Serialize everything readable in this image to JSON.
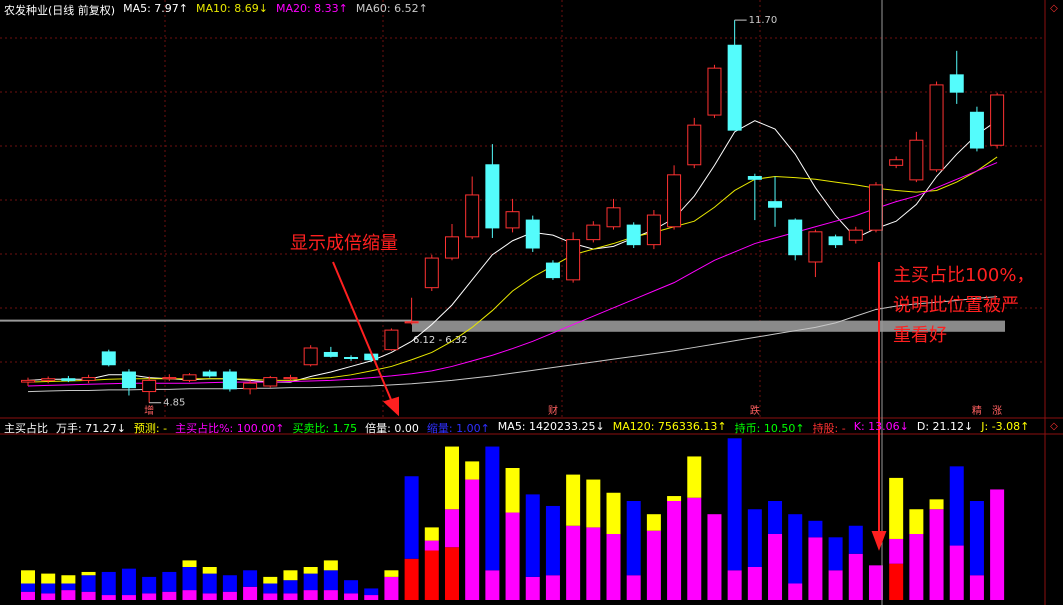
{
  "chart_data": [
    {
      "type": "candlestick",
      "title": "农发种业(日线 前复权)",
      "open": [
        5.22,
        5.25,
        5.28,
        5.25,
        5.76,
        5.4,
        5.05,
        5.28,
        5.25,
        5.4,
        5.4,
        5.1,
        5.15,
        5.28,
        5.53,
        5.75,
        5.66,
        5.72,
        5.8,
        6.28,
        6.91,
        7.44,
        7.82,
        9.11,
        7.98,
        8.12,
        7.35,
        7.05,
        7.77,
        8.0,
        8.03,
        7.68,
        8.0,
        9.11,
        10.0,
        11.25,
        8.9,
        8.45,
        8.12,
        7.37,
        7.82,
        7.76,
        7.94,
        9.1,
        8.84,
        9.02,
        10.72,
        10.05,
        9.46
      ],
      "high": [
        5.3,
        5.32,
        5.33,
        5.35,
        5.8,
        5.45,
        5.32,
        5.36,
        5.38,
        5.44,
        5.45,
        5.25,
        5.33,
        5.35,
        5.88,
        5.85,
        5.7,
        5.76,
        6.18,
        6.73,
        7.5,
        8.05,
        8.9,
        9.48,
        8.5,
        8.2,
        7.4,
        7.9,
        8.1,
        8.5,
        8.08,
        8.3,
        9.1,
        9.95,
        10.9,
        11.7,
        8.95,
        8.9,
        8.15,
        7.95,
        7.86,
        8.0,
        8.8,
        9.26,
        9.7,
        10.6,
        11.15,
        10.15,
        10.4
      ],
      "low": [
        5.15,
        5.2,
        5.22,
        5.2,
        5.5,
        4.98,
        4.85,
        5.24,
        5.22,
        5.3,
        5.05,
        5.0,
        5.12,
        5.25,
        5.5,
        5.66,
        5.6,
        5.58,
        5.78,
        6.25,
        6.85,
        7.4,
        7.78,
        7.8,
        7.9,
        7.55,
        7.05,
        7.0,
        7.72,
        7.95,
        7.62,
        7.6,
        7.95,
        9.05,
        9.95,
        9.73,
        8.12,
        8.0,
        7.4,
        7.1,
        7.62,
        7.7,
        7.9,
        9.05,
        8.8,
        8.98,
        10.2,
        9.35,
        9.4
      ],
      "close": [
        5.25,
        5.28,
        5.25,
        5.3,
        5.53,
        5.12,
        5.25,
        5.3,
        5.35,
        5.33,
        5.1,
        5.2,
        5.3,
        5.3,
        5.83,
        5.68,
        5.65,
        5.62,
        6.15,
        6.3,
        7.44,
        7.82,
        8.57,
        7.98,
        8.27,
        7.62,
        7.09,
        7.77,
        8.03,
        8.34,
        7.68,
        8.21,
        8.93,
        9.82,
        10.84,
        9.73,
        8.85,
        8.35,
        7.5,
        7.91,
        7.68,
        7.94,
        8.75,
        9.2,
        9.55,
        10.54,
        10.41,
        9.41,
        10.36
      ],
      "ylim": [
        4.72,
        12.06
      ],
      "up_color": "#ff3232",
      "down_color": "#54fcfc",
      "lines": [
        {
          "name": "MA5: 7.97↑",
          "color": "#ffffff",
          "values": [
            5.25,
            5.27,
            5.27,
            5.27,
            5.35,
            5.35,
            5.3,
            5.28,
            5.26,
            5.28,
            5.28,
            5.25,
            5.22,
            5.22,
            5.32,
            5.4,
            5.5,
            5.6,
            5.75,
            5.95,
            6.25,
            6.6,
            7.05,
            7.5,
            7.75,
            7.9,
            7.85,
            7.7,
            7.6,
            7.65,
            7.8,
            7.95,
            8.15,
            8.55,
            9.1,
            9.7,
            9.9,
            9.75,
            9.3,
            8.7,
            8.2,
            7.8,
            7.97,
            8.1,
            8.4,
            8.9,
            9.3,
            9.65,
            9.9
          ]
        },
        {
          "name": "MA10: 8.69↓",
          "color": "#e8e800",
          "values": [
            5.22,
            5.23,
            5.24,
            5.25,
            5.27,
            5.28,
            5.28,
            5.28,
            5.28,
            5.28,
            5.28,
            5.27,
            5.25,
            5.25,
            5.28,
            5.3,
            5.35,
            5.42,
            5.5,
            5.62,
            5.75,
            5.95,
            6.2,
            6.5,
            6.85,
            7.1,
            7.3,
            7.5,
            7.6,
            7.7,
            7.82,
            7.9,
            8.0,
            8.1,
            8.35,
            8.65,
            8.85,
            8.9,
            8.88,
            8.85,
            8.8,
            8.75,
            8.69,
            8.65,
            8.62,
            8.65,
            8.8,
            9.0,
            9.25
          ]
        },
        {
          "name": "MA20: 8.33↑",
          "color": "#ff00ff",
          "values": [
            5.15,
            5.16,
            5.17,
            5.18,
            5.19,
            5.2,
            5.2,
            5.2,
            5.2,
            5.21,
            5.22,
            5.22,
            5.22,
            5.23,
            5.24,
            5.25,
            5.27,
            5.3,
            5.33,
            5.37,
            5.42,
            5.5,
            5.6,
            5.7,
            5.82,
            5.95,
            6.1,
            6.25,
            6.4,
            6.55,
            6.7,
            6.85,
            7.0,
            7.2,
            7.4,
            7.55,
            7.7,
            7.8,
            7.9,
            8.0,
            8.1,
            8.2,
            8.33,
            8.45,
            8.55,
            8.7,
            8.85,
            9.0,
            9.15
          ]
        },
        {
          "name": "MA60: 6.52↑",
          "color": "#c8c8c8",
          "values": [
            5.05,
            5.06,
            5.07,
            5.07,
            5.08,
            5.08,
            5.09,
            5.09,
            5.1,
            5.1,
            5.1,
            5.11,
            5.11,
            5.12,
            5.12,
            5.13,
            5.14,
            5.15,
            5.17,
            5.19,
            5.22,
            5.25,
            5.29,
            5.33,
            5.38,
            5.43,
            5.48,
            5.53,
            5.58,
            5.63,
            5.68,
            5.73,
            5.78,
            5.84,
            5.9,
            5.96,
            6.02,
            6.08,
            6.14,
            6.2,
            6.28,
            6.4,
            6.52,
            6.58,
            6.62,
            6.65,
            6.68,
            6.72,
            6.75
          ]
        }
      ],
      "band": {
        "low": 6.12,
        "high": 6.32,
        "label": "6.12 - 6.32"
      },
      "price_labels": [
        {
          "value": 11.7,
          "label": "11.70"
        },
        {
          "value": 4.85,
          "label": "4.85"
        }
      ],
      "events": [
        null,
        null,
        null,
        null,
        null,
        null,
        "增",
        null,
        null,
        null,
        null,
        null,
        null,
        null,
        null,
        null,
        null,
        null,
        null,
        null,
        null,
        null,
        null,
        null,
        null,
        null,
        "财",
        null,
        null,
        null,
        null,
        null,
        null,
        null,
        null,
        null,
        "跌",
        null,
        null,
        null,
        null,
        null,
        null,
        null,
        null,
        null,
        null,
        "精",
        "涨"
      ],
      "annotation": "显示成倍缩量"
    },
    {
      "type": "stacked-bar",
      "title": "主买占比",
      "ylim": [
        0,
        100
      ],
      "indicators": [
        {
          "label": "万手: 71.27↓",
          "color": "#ffffff"
        },
        {
          "label": "预测: -",
          "color": "#ffff00"
        },
        {
          "label": "主买占比%: 100.00↑",
          "color": "#ff00ff"
        },
        {
          "label": "买卖比: 1.75",
          "color": "#00ff00"
        },
        {
          "label": "倍量: 0.00",
          "color": "#ffffff"
        },
        {
          "label": "缩量: 1.00↑",
          "color": "#3030ff"
        },
        {
          "label": "MA5: 1420233.25↓",
          "color": "#ffffff"
        },
        {
          "label": "MA120: 756336.13↑",
          "color": "#ffff00"
        },
        {
          "label": "持币: 10.50↑",
          "color": "#00ff00"
        },
        {
          "label": "持股: -",
          "color": "#ff3232"
        },
        {
          "label": "K: 13.06↓",
          "color": "#ff00ff"
        },
        {
          "label": "D: 21.12↓",
          "color": "#ffffff"
        },
        {
          "label": "J: -3.08↑",
          "color": "#ffff00"
        }
      ],
      "series": [
        {
          "color": "#ff0000",
          "values": [
            0,
            0,
            0,
            0,
            0,
            0,
            0,
            0,
            0,
            0,
            0,
            0,
            0,
            0,
            0,
            0,
            0,
            0,
            0,
            25,
            30,
            32,
            0,
            0,
            0,
            0,
            0,
            0,
            0,
            0,
            0,
            0,
            0,
            0,
            0,
            0,
            0,
            0,
            0,
            0,
            0,
            0,
            0,
            22,
            0,
            0,
            0,
            0,
            0
          ]
        },
        {
          "color": "#ff00ff",
          "values": [
            5,
            4,
            6,
            5,
            3,
            3,
            4,
            5,
            6,
            4,
            5,
            8,
            4,
            4,
            6,
            6,
            4,
            3,
            14,
            0,
            6,
            23,
            73,
            18,
            53,
            14,
            15,
            45,
            44,
            40,
            15,
            42,
            60,
            62,
            52,
            18,
            20,
            40,
            10,
            38,
            18,
            28,
            21,
            15,
            40,
            55,
            33,
            15,
            67
          ]
        },
        {
          "color": "#0000ff",
          "values": [
            5,
            6,
            4,
            10,
            14,
            16,
            10,
            12,
            14,
            12,
            10,
            10,
            6,
            8,
            10,
            12,
            8,
            4,
            0,
            50,
            0,
            0,
            0,
            75,
            0,
            50,
            42,
            0,
            0,
            0,
            45,
            0,
            0,
            0,
            0,
            80,
            35,
            20,
            42,
            10,
            20,
            17,
            0,
            0,
            0,
            0,
            48,
            45,
            0
          ]
        },
        {
          "color": "#ffff00",
          "values": [
            8,
            6,
            5,
            2,
            0,
            0,
            0,
            0,
            4,
            4,
            0,
            0,
            4,
            6,
            4,
            6,
            0,
            0,
            4,
            0,
            8,
            38,
            11,
            0,
            27,
            0,
            0,
            31,
            29,
            25,
            0,
            10,
            3,
            25,
            0,
            0,
            0,
            0,
            0,
            0,
            0,
            0,
            0,
            37,
            15,
            6,
            0,
            0,
            0
          ]
        }
      ],
      "annotation_lines": [
        "主买占比100%，",
        "说明此位置被严",
        "重看好"
      ]
    }
  ]
}
